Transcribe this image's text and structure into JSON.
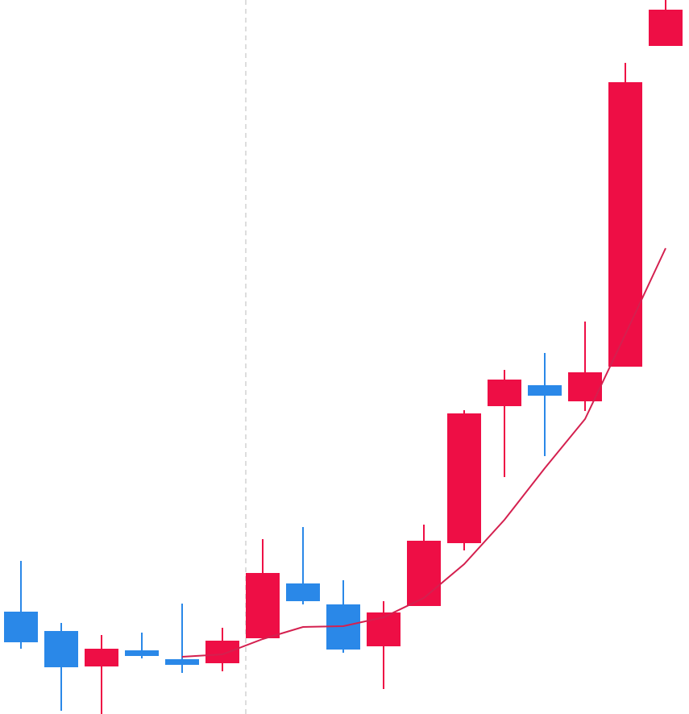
{
  "chart_data": {
    "type": "candlestick",
    "categories": [
      null,
      null,
      null,
      null,
      null,
      null,
      null,
      null,
      null,
      null,
      null,
      null,
      null,
      null,
      null,
      null,
      null
    ],
    "open": [
      127,
      103,
      59,
      79,
      68,
      63,
      94,
      162,
      136,
      84,
      134,
      212,
      382,
      408,
      388,
      431,
      829
    ],
    "high": [
      190,
      113,
      98,
      101,
      137,
      107,
      217,
      232,
      166,
      140,
      235,
      377,
      427,
      448,
      487,
      808,
      886
    ],
    "low": [
      81,
      4,
      0,
      69,
      51,
      53,
      94,
      136,
      76,
      31,
      134,
      203,
      294,
      320,
      376,
      431,
      829
    ],
    "close": [
      89,
      58,
      81,
      72,
      61,
      91,
      175,
      140,
      80,
      126,
      215,
      373,
      415,
      395,
      424,
      784,
      874
    ],
    "up_color": "#ee0e45",
    "down_color": "#2a88e8",
    "series": [
      {
        "color": "#d4204f",
        "values": [
          null,
          null,
          null,
          null,
          71,
          74,
          93,
          108,
          109,
          120,
          144,
          186,
          241,
          305,
          366,
          471,
          578
        ]
      }
    ],
    "ylim": [
      0,
      886
    ],
    "grid": false
  }
}
